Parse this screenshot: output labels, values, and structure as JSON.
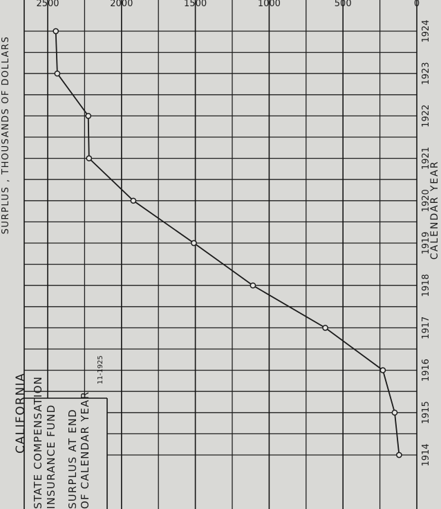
{
  "chart_data": {
    "type": "line",
    "title_lines": [
      "CALIFORNIA",
      "STATE COMPENSATION",
      "INSURANCE FUND",
      "SURPLUS AT END",
      "OF CALENDAR YEAR"
    ],
    "date_note": "11-1925",
    "xlabel": "CALENDAR YEAR",
    "ylabel": "SURPLUS , THOUSANDS OF DOLLARS",
    "x": [
      1914,
      1915,
      1916,
      1917,
      1918,
      1919,
      1920,
      1921,
      1922,
      1923,
      1924
    ],
    "y": [
      120,
      150,
      230,
      620,
      1110,
      1510,
      1920,
      2220,
      2225,
      2435,
      2445
    ],
    "xlim": [
      1914,
      1924
    ],
    "ylim": [
      0,
      2500
    ],
    "xticks": [
      "1914",
      "1915",
      "1916",
      "1917",
      "1918",
      "1919",
      "1920",
      "1921",
      "1922",
      "1923",
      "1924"
    ],
    "yticks": [
      "0",
      "500",
      "1000",
      "1500",
      "2000",
      "2500"
    ],
    "grid": true,
    "colors": {
      "background": "#d9d9d6",
      "ink": "#1a1a1a"
    }
  }
}
